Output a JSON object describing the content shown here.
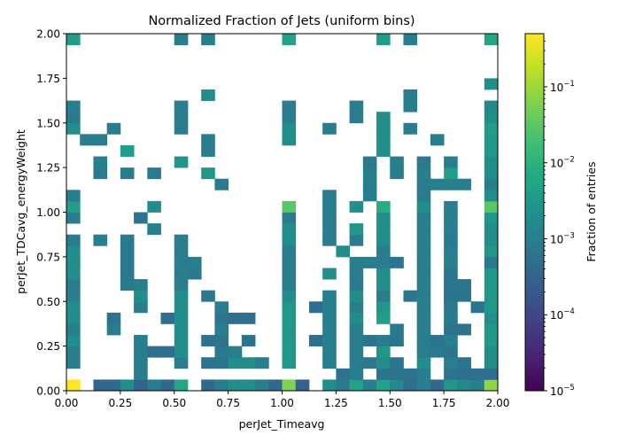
{
  "chart_data": {
    "type": "heatmap",
    "title": "Normalized Fraction of Jets (uniform bins)",
    "xlabel": "perJet_Timeavg",
    "ylabel": "perJet_TDCavg_energyWeight",
    "colorbar_label": "Fraction of entries",
    "colormap": "viridis",
    "color_scale": "log",
    "xlim": [
      0,
      2
    ],
    "ylim": [
      0,
      2
    ],
    "bins": {
      "x": 32,
      "y": 32
    },
    "xticks": [
      "0.00",
      "0.25",
      "0.50",
      "0.75",
      "1.00",
      "1.25",
      "1.50",
      "1.75",
      "2.00"
    ],
    "yticks": [
      "0.00",
      "0.25",
      "0.50",
      "0.75",
      "1.00",
      "1.25",
      "1.50",
      "1.75",
      "2.00"
    ],
    "xtick_values": [
      0,
      0.25,
      0.5,
      0.75,
      1.0,
      1.25,
      1.5,
      1.75,
      2.0
    ],
    "ytick_values": [
      0,
      0.25,
      0.5,
      0.75,
      1.0,
      1.25,
      1.5,
      1.75,
      2.0
    ],
    "colorbar_range": [
      1e-05,
      0.5
    ],
    "colorbar_ticks": [
      {
        "value": 1e-05,
        "base": "10",
        "exp": "−5"
      },
      {
        "value": 0.0001,
        "base": "10",
        "exp": "−4"
      },
      {
        "value": 0.001,
        "base": "10",
        "exp": "−3"
      },
      {
        "value": 0.01,
        "base": "10",
        "exp": "−2"
      },
      {
        "value": 0.1,
        "base": "10",
        "exp": "−1"
      }
    ],
    "cells": [
      [
        0,
        0,
        0.5
      ],
      [
        2,
        0,
        0.0004
      ],
      [
        3,
        0,
        0.0004
      ],
      [
        4,
        0,
        0.002
      ],
      [
        5,
        0,
        0.0003
      ],
      [
        6,
        0,
        0.001
      ],
      [
        7,
        0,
        0.0004
      ],
      [
        8,
        0,
        0.006
      ],
      [
        10,
        0,
        0.0004
      ],
      [
        11,
        0,
        0.001
      ],
      [
        12,
        0,
        0.002
      ],
      [
        13,
        0,
        0.002
      ],
      [
        14,
        0,
        0.001
      ],
      [
        15,
        0,
        0.0004
      ],
      [
        16,
        0,
        0.06
      ],
      [
        17,
        0,
        0.0003
      ],
      [
        19,
        0,
        0.002
      ],
      [
        20,
        0,
        0.0008
      ],
      [
        21,
        0,
        0.005
      ],
      [
        22,
        0,
        0.001
      ],
      [
        23,
        0,
        0.005
      ],
      [
        24,
        0,
        0.0015
      ],
      [
        25,
        0,
        0.0005
      ],
      [
        26,
        0,
        0.001
      ],
      [
        27,
        0,
        0.0004
      ],
      [
        28,
        0,
        0.003
      ],
      [
        29,
        0,
        0.0015
      ],
      [
        30,
        0,
        0.001
      ],
      [
        31,
        0,
        0.08
      ],
      [
        5,
        1,
        0.001
      ],
      [
        20,
        1,
        0.0006
      ],
      [
        21,
        1,
        0.001
      ],
      [
        23,
        1,
        0.0006
      ],
      [
        24,
        1,
        0.0006
      ],
      [
        25,
        1,
        0.0006
      ],
      [
        26,
        1,
        0.001
      ],
      [
        28,
        1,
        0.0007
      ],
      [
        29,
        1,
        0.0005
      ],
      [
        30,
        1,
        0.0005
      ],
      [
        31,
        1,
        0.0005
      ],
      [
        0,
        2,
        0.001
      ],
      [
        5,
        2,
        0.001
      ],
      [
        8,
        2,
        0.001
      ],
      [
        10,
        2,
        0.0006
      ],
      [
        11,
        2,
        0.0006
      ],
      [
        12,
        2,
        0.002
      ],
      [
        13,
        2,
        0.002
      ],
      [
        14,
        2,
        0.001
      ],
      [
        16,
        2,
        0.003
      ],
      [
        19,
        2,
        0.001
      ],
      [
        21,
        2,
        0.001
      ],
      [
        22,
        2,
        0.0008
      ],
      [
        23,
        2,
        0.002
      ],
      [
        24,
        2,
        0.0007
      ],
      [
        26,
        2,
        0.002
      ],
      [
        28,
        2,
        0.001
      ],
      [
        29,
        2,
        0.0007
      ],
      [
        31,
        2,
        0.002
      ],
      [
        0,
        3,
        0.001
      ],
      [
        5,
        3,
        0.001
      ],
      [
        6,
        3,
        0.0005
      ],
      [
        7,
        3,
        0.0005
      ],
      [
        8,
        3,
        0.002
      ],
      [
        11,
        3,
        0.0008
      ],
      [
        12,
        3,
        0.001
      ],
      [
        16,
        3,
        0.003
      ],
      [
        19,
        3,
        0.001
      ],
      [
        21,
        3,
        0.001
      ],
      [
        23,
        3,
        0.003
      ],
      [
        26,
        3,
        0.001
      ],
      [
        27,
        3,
        0.0008
      ],
      [
        28,
        3,
        0.0006
      ],
      [
        31,
        3,
        0.002
      ],
      [
        0,
        4,
        0.002
      ],
      [
        5,
        4,
        0.001
      ],
      [
        8,
        4,
        0.002
      ],
      [
        10,
        4,
        0.0006
      ],
      [
        11,
        4,
        0.0006
      ],
      [
        13,
        4,
        0.0006
      ],
      [
        16,
        4,
        0.003
      ],
      [
        18,
        4,
        0.0005
      ],
      [
        19,
        4,
        0.001
      ],
      [
        21,
        4,
        0.001
      ],
      [
        22,
        4,
        0.0006
      ],
      [
        23,
        4,
        0.001
      ],
      [
        24,
        4,
        0.0007
      ],
      [
        26,
        4,
        0.001
      ],
      [
        27,
        4,
        0.0006
      ],
      [
        28,
        4,
        0.001
      ],
      [
        31,
        4,
        0.003
      ],
      [
        0,
        5,
        0.001
      ],
      [
        3,
        5,
        0.001
      ],
      [
        8,
        5,
        0.002
      ],
      [
        11,
        5,
        0.001
      ],
      [
        16,
        5,
        0.003
      ],
      [
        19,
        5,
        0.001
      ],
      [
        21,
        5,
        0.001
      ],
      [
        24,
        5,
        0.0008
      ],
      [
        26,
        5,
        0.001
      ],
      [
        28,
        5,
        0.0006
      ],
      [
        29,
        5,
        0.0006
      ],
      [
        31,
        5,
        0.003
      ],
      [
        0,
        6,
        0.002
      ],
      [
        3,
        6,
        0.0006
      ],
      [
        7,
        6,
        0.0005
      ],
      [
        8,
        6,
        0.002
      ],
      [
        11,
        6,
        0.0006
      ],
      [
        12,
        6,
        0.0005
      ],
      [
        13,
        6,
        0.0005
      ],
      [
        16,
        6,
        0.003
      ],
      [
        19,
        6,
        0.001
      ],
      [
        21,
        6,
        0.002
      ],
      [
        23,
        6,
        0.004
      ],
      [
        26,
        6,
        0.001
      ],
      [
        28,
        6,
        0.0008
      ],
      [
        31,
        6,
        0.002
      ],
      [
        0,
        7,
        0.002
      ],
      [
        5,
        7,
        0.001
      ],
      [
        8,
        7,
        0.002
      ],
      [
        11,
        7,
        0.001
      ],
      [
        16,
        7,
        0.003
      ],
      [
        18,
        7,
        0.0005
      ],
      [
        19,
        7,
        0.001
      ],
      [
        21,
        7,
        0.001
      ],
      [
        23,
        7,
        0.003
      ],
      [
        26,
        7,
        0.001
      ],
      [
        28,
        7,
        0.0008
      ],
      [
        30,
        7,
        0.0006
      ],
      [
        31,
        7,
        0.003
      ],
      [
        0,
        8,
        0.001
      ],
      [
        5,
        8,
        0.002
      ],
      [
        8,
        8,
        0.002
      ],
      [
        10,
        8,
        0.0008
      ],
      [
        16,
        8,
        0.002
      ],
      [
        19,
        8,
        0.001
      ],
      [
        21,
        8,
        0.002
      ],
      [
        23,
        8,
        0.001
      ],
      [
        25,
        8,
        0.0007
      ],
      [
        26,
        8,
        0.001
      ],
      [
        28,
        8,
        0.0006
      ],
      [
        29,
        8,
        0.0006
      ],
      [
        31,
        8,
        0.003
      ],
      [
        0,
        9,
        0.0009
      ],
      [
        4,
        9,
        0.0008
      ],
      [
        5,
        9,
        0.001
      ],
      [
        8,
        9,
        0.001
      ],
      [
        16,
        9,
        0.001
      ],
      [
        21,
        9,
        0.0008
      ],
      [
        23,
        9,
        0.002
      ],
      [
        26,
        9,
        0.001
      ],
      [
        28,
        9,
        0.0007
      ],
      [
        29,
        9,
        0.0007
      ],
      [
        31,
        9,
        0.003
      ],
      [
        0,
        10,
        0.002
      ],
      [
        4,
        10,
        0.0008
      ],
      [
        8,
        10,
        0.001
      ],
      [
        9,
        10,
        0.0008
      ],
      [
        16,
        10,
        0.001
      ],
      [
        19,
        10,
        0.002
      ],
      [
        21,
        10,
        0.001
      ],
      [
        23,
        10,
        0.002
      ],
      [
        26,
        10,
        0.001
      ],
      [
        28,
        10,
        0.0007
      ],
      [
        31,
        10,
        0.003
      ],
      [
        0,
        11,
        0.002
      ],
      [
        4,
        11,
        0.0008
      ],
      [
        8,
        11,
        0.001
      ],
      [
        9,
        11,
        0.001
      ],
      [
        16,
        11,
        0.001
      ],
      [
        21,
        11,
        0.001
      ],
      [
        22,
        11,
        0.001
      ],
      [
        23,
        11,
        0.001
      ],
      [
        24,
        11,
        0.0007
      ],
      [
        26,
        11,
        0.001
      ],
      [
        28,
        11,
        0.001
      ],
      [
        31,
        11,
        0.0008
      ],
      [
        0,
        12,
        0.002
      ],
      [
        4,
        12,
        0.0008
      ],
      [
        8,
        12,
        0.001
      ],
      [
        16,
        12,
        0.001
      ],
      [
        20,
        12,
        0.002
      ],
      [
        23,
        12,
        0.001
      ],
      [
        26,
        12,
        0.001
      ],
      [
        28,
        12,
        0.001
      ],
      [
        31,
        12,
        0.003
      ],
      [
        0,
        13,
        0.0009
      ],
      [
        2,
        13,
        0.001
      ],
      [
        4,
        13,
        0.0008
      ],
      [
        8,
        13,
        0.001
      ],
      [
        16,
        13,
        0.002
      ],
      [
        19,
        13,
        0.0009
      ],
      [
        21,
        13,
        0.001
      ],
      [
        23,
        13,
        0.002
      ],
      [
        26,
        13,
        0.001
      ],
      [
        28,
        13,
        0.0008
      ],
      [
        31,
        13,
        0.002
      ],
      [
        6,
        14,
        0.001
      ],
      [
        16,
        14,
        0.002
      ],
      [
        19,
        14,
        0.001
      ],
      [
        21,
        14,
        0.003
      ],
      [
        23,
        14,
        0.002
      ],
      [
        26,
        14,
        0.001
      ],
      [
        28,
        14,
        0.001
      ],
      [
        31,
        14,
        0.002
      ],
      [
        0,
        15,
        0.0009
      ],
      [
        5,
        15,
        0.0007
      ],
      [
        16,
        15,
        0.0009
      ],
      [
        19,
        15,
        0.0009
      ],
      [
        23,
        15,
        0.002
      ],
      [
        26,
        15,
        0.001
      ],
      [
        28,
        15,
        0.001
      ],
      [
        31,
        15,
        0.003
      ],
      [
        0,
        16,
        0.004
      ],
      [
        6,
        16,
        0.002
      ],
      [
        16,
        16,
        0.03
      ],
      [
        19,
        16,
        0.001
      ],
      [
        21,
        16,
        0.002
      ],
      [
        23,
        16,
        0.008
      ],
      [
        26,
        16,
        0.002
      ],
      [
        28,
        16,
        0.001
      ],
      [
        31,
        16,
        0.03
      ],
      [
        0,
        17,
        0.001
      ],
      [
        19,
        17,
        0.0009
      ],
      [
        22,
        17,
        0.001
      ],
      [
        26,
        17,
        0.0009
      ],
      [
        31,
        17,
        0.002
      ],
      [
        11,
        18,
        0.0009
      ],
      [
        22,
        18,
        0.0009
      ],
      [
        26,
        18,
        0.001
      ],
      [
        27,
        18,
        0.001
      ],
      [
        28,
        18,
        0.001
      ],
      [
        29,
        18,
        0.001
      ],
      [
        31,
        18,
        0.001
      ],
      [
        2,
        19,
        0.0009
      ],
      [
        4,
        19,
        0.0009
      ],
      [
        6,
        19,
        0.0009
      ],
      [
        10,
        19,
        0.003
      ],
      [
        22,
        19,
        0.001
      ],
      [
        24,
        19,
        0.001
      ],
      [
        26,
        19,
        0.001
      ],
      [
        28,
        19,
        0.004
      ],
      [
        31,
        19,
        0.002
      ],
      [
        2,
        20,
        0.001
      ],
      [
        8,
        20,
        0.003
      ],
      [
        22,
        20,
        0.0008
      ],
      [
        24,
        20,
        0.001
      ],
      [
        26,
        20,
        0.0008
      ],
      [
        28,
        20,
        0.001
      ],
      [
        31,
        20,
        0.002
      ],
      [
        4,
        21,
        0.004
      ],
      [
        10,
        21,
        0.0009
      ],
      [
        23,
        21,
        0.002
      ],
      [
        31,
        21,
        0.003
      ],
      [
        1,
        22,
        0.001
      ],
      [
        2,
        22,
        0.0009
      ],
      [
        10,
        22,
        0.001
      ],
      [
        16,
        22,
        0.002
      ],
      [
        23,
        22,
        0.002
      ],
      [
        27,
        22,
        0.001
      ],
      [
        31,
        22,
        0.003
      ],
      [
        0,
        23,
        0.002
      ],
      [
        3,
        23,
        0.001
      ],
      [
        8,
        23,
        0.001
      ],
      [
        16,
        23,
        0.002
      ],
      [
        19,
        23,
        0.001
      ],
      [
        23,
        23,
        0.002
      ],
      [
        25,
        23,
        0.001
      ],
      [
        31,
        23,
        0.004
      ],
      [
        0,
        24,
        0.0008
      ],
      [
        8,
        24,
        0.001
      ],
      [
        16,
        24,
        0.001
      ],
      [
        21,
        24,
        0.001
      ],
      [
        23,
        24,
        0.002
      ],
      [
        31,
        24,
        0.002
      ],
      [
        0,
        25,
        0.001
      ],
      [
        8,
        25,
        0.001
      ],
      [
        16,
        25,
        0.001
      ],
      [
        21,
        25,
        0.001
      ],
      [
        25,
        25,
        0.001
      ],
      [
        31,
        25,
        0.0015
      ],
      [
        10,
        26,
        0.002
      ],
      [
        25,
        26,
        0.001
      ],
      [
        31,
        27,
        0.002
      ],
      [
        0,
        31,
        0.004
      ],
      [
        8,
        31,
        0.001
      ],
      [
        10,
        31,
        0.001
      ],
      [
        16,
        31,
        0.005
      ],
      [
        23,
        31,
        0.004
      ],
      [
        25,
        31,
        0.001
      ],
      [
        31,
        31,
        0.006
      ]
    ]
  }
}
